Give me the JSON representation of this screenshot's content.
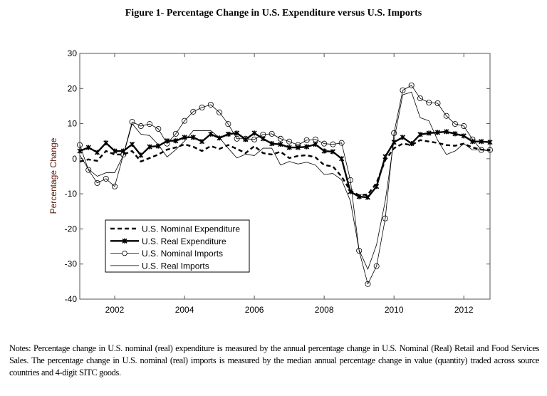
{
  "chart_data": {
    "type": "line",
    "title": "Figure 1- Percentage Change in U.S. Expenditure versus U.S. Imports",
    "xlabel": "",
    "ylabel": "Percentage Change",
    "xlim": [
      2001,
      2012.75
    ],
    "ylim": [
      -40,
      30
    ],
    "xticks": [
      2002,
      2004,
      2006,
      2008,
      2010,
      2012
    ],
    "yticks": [
      -40,
      -30,
      -20,
      -10,
      0,
      10,
      20,
      30
    ],
    "grid": false,
    "legend_placement": "lower-left",
    "x_start": 2001,
    "x_step": 0.25,
    "series": [
      {
        "name": "U.S. Nominal Expenditure",
        "style": "dashed-thick",
        "values": [
          -0.8,
          -0.2,
          -0.6,
          2.2,
          1.2,
          1.2,
          2.2,
          -0.8,
          0.2,
          1.2,
          2.6,
          3.2,
          4.1,
          3.4,
          2.2,
          3.6,
          2.8,
          3.9,
          2.8,
          1.6,
          3.6,
          1.6,
          1.2,
          2.0,
          0.2,
          0.8,
          1.0,
          0.4,
          -1.8,
          -2.2,
          -5.1,
          -9.1,
          -10.4,
          -10.2,
          -6.9,
          -0.4,
          3.0,
          4.3,
          3.9,
          5.3,
          4.9,
          4.5,
          3.9,
          3.7,
          4.3,
          3.2,
          2.6,
          2.5
        ]
      },
      {
        "name": "U.S. Real Expenditure",
        "style": "thick-star",
        "values": [
          2.2,
          3.2,
          1.8,
          4.5,
          2.2,
          2.2,
          4.1,
          1.0,
          3.4,
          3.6,
          5.1,
          5.1,
          6.1,
          6.1,
          4.9,
          7.0,
          5.9,
          7.0,
          7.3,
          5.5,
          7.3,
          5.7,
          4.3,
          4.1,
          3.2,
          3.2,
          3.4,
          4.1,
          2.2,
          2.0,
          0.0,
          -9.4,
          -10.8,
          -11.0,
          -7.9,
          0.6,
          4.7,
          6.1,
          4.3,
          6.9,
          7.3,
          7.5,
          7.7,
          7.1,
          6.5,
          4.9,
          4.9,
          4.7
        ]
      },
      {
        "name": "U.S. Nominal Imports",
        "style": "thin-circle",
        "values": [
          3.9,
          -3.2,
          -6.9,
          -5.7,
          -7.9,
          1.2,
          10.5,
          9.3,
          9.9,
          8.5,
          4.3,
          7.1,
          10.8,
          13.4,
          14.6,
          15.4,
          13.2,
          9.9,
          5.7,
          5.7,
          5.5,
          6.9,
          7.1,
          5.7,
          4.9,
          3.9,
          5.3,
          5.5,
          4.3,
          4.1,
          4.5,
          -6.1,
          -26.2,
          -35.7,
          -30.6,
          -17.0,
          7.3,
          19.5,
          20.9,
          17.2,
          16.0,
          15.8,
          12.2,
          9.9,
          9.3,
          5.5,
          2.5,
          2.5
        ]
      },
      {
        "name": "U.S. Real Imports",
        "style": "thin",
        "values": [
          1.0,
          -3.0,
          -5.0,
          -4.0,
          -4.0,
          1.0,
          10.0,
          7.0,
          6.6,
          4.0,
          0.5,
          2.6,
          5.0,
          8.0,
          8.0,
          8.0,
          6.0,
          3.0,
          0.2,
          1.3,
          0.9,
          3.0,
          3.0,
          -1.8,
          -0.8,
          -1.5,
          -1.0,
          -1.8,
          -4.5,
          -4.2,
          -6.0,
          -12.0,
          -26.0,
          -31.5,
          -24.5,
          -12.0,
          5.3,
          18.2,
          19.0,
          11.7,
          10.8,
          5.3,
          1.2,
          2.2,
          4.3,
          2.5,
          2.5,
          2.2
        ]
      }
    ]
  },
  "notes": "Notes: Percentage change in U.S. nominal (real) expenditure is measured by the annual percentage change in U.S. Nominal (Real) Retail and Food Services Sales. The percentage change in U.S. nominal (real) imports is measured by the median annual percentage change in value (quantity) traded across source countries and 4-digit SITC goods.",
  "colors": {
    "lines": "#000000",
    "ylabel": "#5a1a10",
    "axes": "#555555"
  }
}
